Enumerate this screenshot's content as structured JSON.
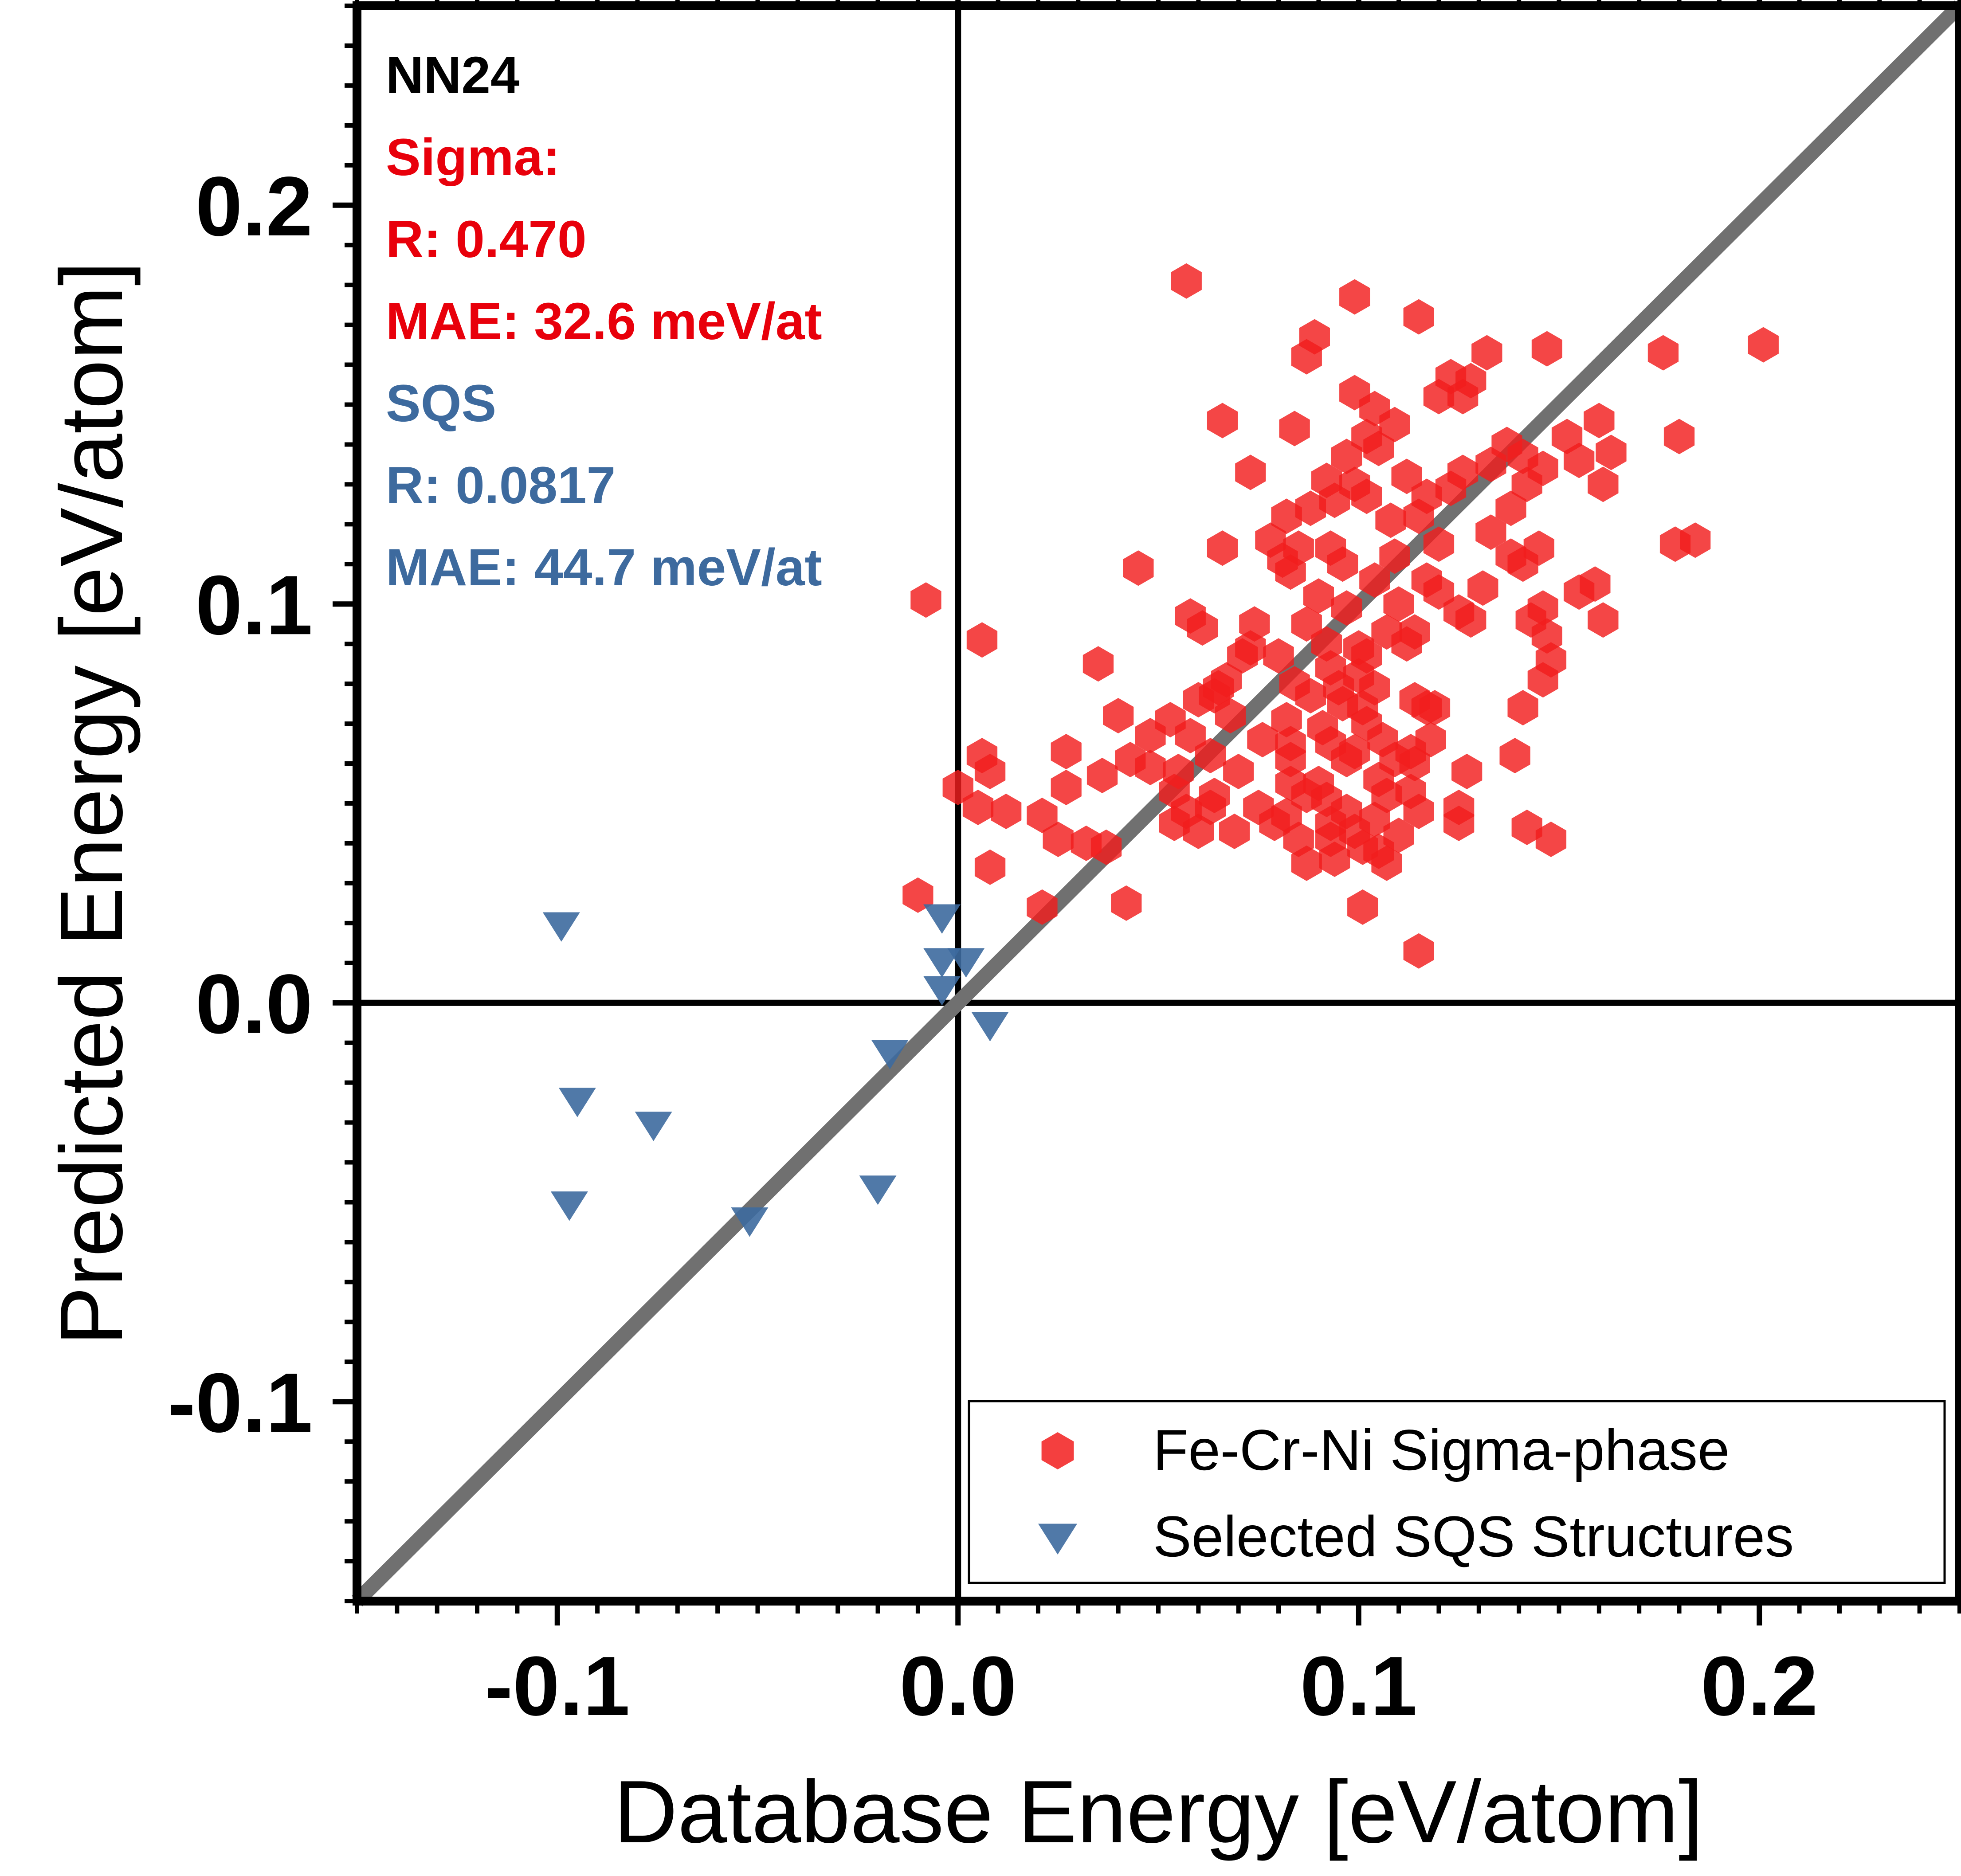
{
  "chart_data": {
    "type": "scatter",
    "title": "",
    "xlabel": "Database Energy [eV/atom]",
    "ylabel": "Predicted Energy [eV/atom]",
    "xlim": [
      -0.15,
      0.25
    ],
    "ylim": [
      -0.15,
      0.25
    ],
    "xticks": [
      {
        "value": -0.1,
        "label": "-0.1"
      },
      {
        "value": 0.0,
        "label": "0.0"
      },
      {
        "value": 0.1,
        "label": "0.1"
      },
      {
        "value": 0.2,
        "label": "0.2"
      }
    ],
    "yticks": [
      {
        "value": -0.1,
        "label": "-0.1"
      },
      {
        "value": 0.0,
        "label": "0.0"
      },
      {
        "value": 0.1,
        "label": "0.1"
      },
      {
        "value": 0.2,
        "label": "0.2"
      }
    ],
    "minor_tick_step": 0.01,
    "zero_lines": true,
    "reference_line": {
      "label": "y = x",
      "color": "#707070"
    },
    "annotations": [
      {
        "text": "NN24",
        "color": "#000000"
      },
      {
        "text": "Sigma:",
        "color": "#e8000b"
      },
      {
        "text": "R: 0.470",
        "color": "#e8000b"
      },
      {
        "text": "MAE: 32.6 meV/at",
        "color": "#e8000b"
      },
      {
        "text": "SQS",
        "color": "#3d6a9e"
      },
      {
        "text": "R: 0.0817",
        "color": "#3d6a9e"
      },
      {
        "text": "MAE: 44.7 meV/at",
        "color": "#3d6a9e"
      }
    ],
    "legend_position": "bottom-right",
    "series": [
      {
        "name": "Fe-Cr-Ni Sigma-phase",
        "marker": "hexagon",
        "color": "#f21d1d",
        "points": [
          [
            0.057,
            0.181
          ],
          [
            0.099,
            0.177
          ],
          [
            0.115,
            0.172
          ],
          [
            0.089,
            0.167
          ],
          [
            0.087,
            0.162
          ],
          [
            0.201,
            0.165
          ],
          [
            0.176,
            0.163
          ],
          [
            0.147,
            0.164
          ],
          [
            0.132,
            0.163
          ],
          [
            0.123,
            0.157
          ],
          [
            0.128,
            0.156
          ],
          [
            0.099,
            0.153
          ],
          [
            0.104,
            0.149
          ],
          [
            0.12,
            0.152
          ],
          [
            0.126,
            0.152
          ],
          [
            0.066,
            0.146
          ],
          [
            0.084,
            0.144
          ],
          [
            0.109,
            0.145
          ],
          [
            0.137,
            0.14
          ],
          [
            0.152,
            0.142
          ],
          [
            0.16,
            0.146
          ],
          [
            0.18,
            0.142
          ],
          [
            0.102,
            0.142
          ],
          [
            0.105,
            0.139
          ],
          [
            0.097,
            0.137
          ],
          [
            0.163,
            0.138
          ],
          [
            0.073,
            0.133
          ],
          [
            0.092,
            0.131
          ],
          [
            0.099,
            0.13
          ],
          [
            0.112,
            0.132
          ],
          [
            0.126,
            0.133
          ],
          [
            0.133,
            0.135
          ],
          [
            0.141,
            0.137
          ],
          [
            0.146,
            0.134
          ],
          [
            0.155,
            0.136
          ],
          [
            0.161,
            0.13
          ],
          [
            0.094,
            0.126
          ],
          [
            0.102,
            0.127
          ],
          [
            0.117,
            0.127
          ],
          [
            0.123,
            0.129
          ],
          [
            0.142,
            0.13
          ],
          [
            0.082,
            0.122
          ],
          [
            0.088,
            0.124
          ],
          [
            0.108,
            0.121
          ],
          [
            0.115,
            0.122
          ],
          [
            0.138,
            0.124
          ],
          [
            0.078,
            0.116
          ],
          [
            0.093,
            0.114
          ],
          [
            0.12,
            0.115
          ],
          [
            0.133,
            0.118
          ],
          [
            0.179,
            0.115
          ],
          [
            0.184,
            0.116
          ],
          [
            0.066,
            0.114
          ],
          [
            0.081,
            0.111
          ],
          [
            0.085,
            0.114
          ],
          [
            0.109,
            0.112
          ],
          [
            0.138,
            0.112
          ],
          [
            0.141,
            0.11
          ],
          [
            0.145,
            0.114
          ],
          [
            0.045,
            0.109
          ],
          [
            0.083,
            0.108
          ],
          [
            0.096,
            0.11
          ],
          [
            0.104,
            0.106
          ],
          [
            0.117,
            0.106
          ],
          [
            0.12,
            0.103
          ],
          [
            0.131,
            0.104
          ],
          [
            0.155,
            0.103
          ],
          [
            0.159,
            0.105
          ],
          [
            0.09,
            0.102
          ],
          [
            0.097,
            0.099
          ],
          [
            0.11,
            0.1
          ],
          [
            0.125,
            0.098
          ],
          [
            0.146,
            0.099
          ],
          [
            0.161,
            0.096
          ],
          [
            -0.008,
            0.101
          ],
          [
            0.058,
            0.097
          ],
          [
            0.061,
            0.094
          ],
          [
            0.074,
            0.095
          ],
          [
            0.087,
            0.095
          ],
          [
            0.107,
            0.093
          ],
          [
            0.114,
            0.093
          ],
          [
            0.128,
            0.096
          ],
          [
            0.143,
            0.096
          ],
          [
            0.147,
            0.092
          ],
          [
            0.006,
            0.091
          ],
          [
            0.073,
            0.089
          ],
          [
            0.092,
            0.09
          ],
          [
            0.1,
            0.089
          ],
          [
            0.071,
            0.087
          ],
          [
            0.08,
            0.087
          ],
          [
            0.102,
            0.087
          ],
          [
            0.112,
            0.09
          ],
          [
            0.035,
            0.085
          ],
          [
            0.093,
            0.084
          ],
          [
            0.148,
            0.086
          ],
          [
            0.065,
            0.079
          ],
          [
            0.067,
            0.081
          ],
          [
            0.084,
            0.08
          ],
          [
            0.095,
            0.079
          ],
          [
            0.1,
            0.082
          ],
          [
            0.104,
            0.079
          ],
          [
            0.146,
            0.081
          ],
          [
            0.06,
            0.076
          ],
          [
            0.064,
            0.077
          ],
          [
            0.088,
            0.077
          ],
          [
            0.096,
            0.075
          ],
          [
            0.101,
            0.074
          ],
          [
            0.114,
            0.076
          ],
          [
            0.119,
            0.074
          ],
          [
            0.141,
            0.074
          ],
          [
            0.04,
            0.072
          ],
          [
            0.053,
            0.071
          ],
          [
            0.068,
            0.072
          ],
          [
            0.082,
            0.071
          ],
          [
            0.091,
            0.069
          ],
          [
            0.102,
            0.07
          ],
          [
            0.117,
            0.074
          ],
          [
            0.048,
            0.067
          ],
          [
            0.058,
            0.067
          ],
          [
            0.076,
            0.066
          ],
          [
            0.083,
            0.065
          ],
          [
            0.093,
            0.065
          ],
          [
            0.099,
            0.063
          ],
          [
            0.106,
            0.066
          ],
          [
            0.113,
            0.063
          ],
          [
            0.118,
            0.066
          ],
          [
            0.027,
            0.063
          ],
          [
            0.043,
            0.061
          ],
          [
            0.063,
            0.062
          ],
          [
            0.083,
            0.061
          ],
          [
            0.097,
            0.061
          ],
          [
            0.109,
            0.061
          ],
          [
            0.114,
            0.06
          ],
          [
            0.139,
            0.062
          ],
          [
            0.006,
            0.062
          ],
          [
            0.008,
            0.058
          ],
          [
            0.036,
            0.057
          ],
          [
            0.048,
            0.059
          ],
          [
            0.055,
            0.058
          ],
          [
            0.07,
            0.058
          ],
          [
            0.083,
            0.055
          ],
          [
            0.09,
            0.055
          ],
          [
            0.105,
            0.056
          ],
          [
            0.127,
            0.058
          ],
          [
            0.0,
            0.054
          ],
          [
            0.027,
            0.054
          ],
          [
            0.054,
            0.053
          ],
          [
            0.064,
            0.052
          ],
          [
            0.087,
            0.052
          ],
          [
            0.092,
            0.051
          ],
          [
            0.107,
            0.052
          ],
          [
            0.113,
            0.053
          ],
          [
            0.005,
            0.049
          ],
          [
            0.012,
            0.048
          ],
          [
            0.021,
            0.047
          ],
          [
            0.057,
            0.048
          ],
          [
            0.063,
            0.049
          ],
          [
            0.075,
            0.049
          ],
          [
            0.082,
            0.047
          ],
          [
            0.097,
            0.048
          ],
          [
            0.104,
            0.046
          ],
          [
            0.115,
            0.048
          ],
          [
            0.125,
            0.049
          ],
          [
            0.054,
            0.045
          ],
          [
            0.06,
            0.043
          ],
          [
            0.069,
            0.043
          ],
          [
            0.079,
            0.045
          ],
          [
            0.093,
            0.045
          ],
          [
            0.099,
            0.043
          ],
          [
            0.11,
            0.042
          ],
          [
            0.125,
            0.045
          ],
          [
            0.142,
            0.044
          ],
          [
            0.148,
            0.041
          ],
          [
            0.025,
            0.041
          ],
          [
            0.032,
            0.04
          ],
          [
            0.037,
            0.039
          ],
          [
            0.085,
            0.041
          ],
          [
            0.093,
            0.041
          ],
          [
            0.101,
            0.039
          ],
          [
            0.105,
            0.038
          ],
          [
            0.008,
            0.034
          ],
          [
            0.087,
            0.035
          ],
          [
            0.094,
            0.036
          ],
          [
            0.107,
            0.035
          ],
          [
            0.042,
            0.025
          ],
          [
            0.101,
            0.024
          ],
          [
            0.021,
            0.024
          ],
          [
            -0.01,
            0.027
          ],
          [
            0.115,
            0.013
          ]
        ]
      },
      {
        "name": "Selected SQS Structures",
        "marker": "triangle-down",
        "color": "#3d6a9e",
        "points": [
          [
            -0.099,
            0.02
          ],
          [
            -0.004,
            0.022
          ],
          [
            -0.004,
            0.011
          ],
          [
            0.002,
            0.011
          ],
          [
            -0.004,
            0.004
          ],
          [
            0.008,
            -0.005
          ],
          [
            -0.017,
            -0.012
          ],
          [
            -0.095,
            -0.024
          ],
          [
            -0.076,
            -0.03
          ],
          [
            -0.097,
            -0.05
          ],
          [
            -0.052,
            -0.054
          ],
          [
            -0.02,
            -0.046
          ]
        ]
      }
    ]
  }
}
